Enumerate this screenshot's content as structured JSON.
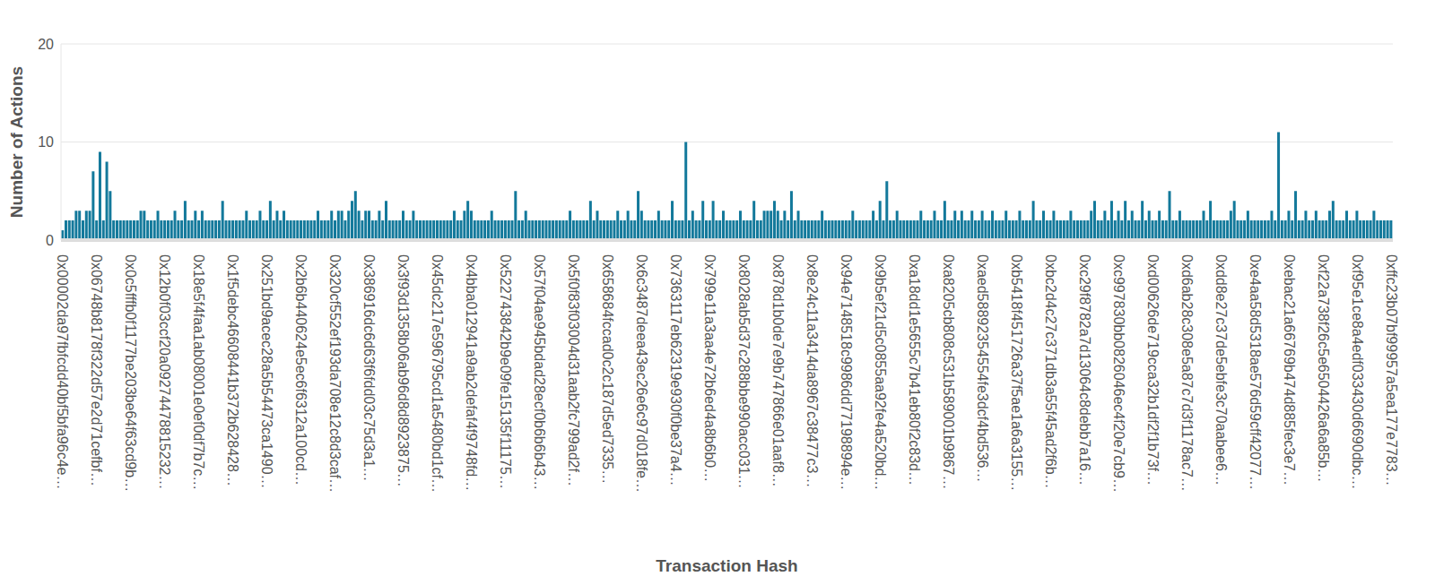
{
  "chart_data": {
    "type": "bar",
    "x_label": "Transaction Hash",
    "y_label": "Number of Actions",
    "color": "#13799b",
    "ylim": [
      0,
      20
    ],
    "yticks": [
      0,
      10,
      20
    ],
    "grid": true,
    "categories": [
      "0x00002da97fbfcdd40bf5bfa96c4e…",
      null,
      null,
      null,
      null,
      null,
      null,
      null,
      null,
      null,
      "0x06748b8178f322d57e2d71cefbf…",
      null,
      null,
      null,
      null,
      null,
      null,
      null,
      null,
      null,
      "0x0c5fffb0f1177be203be64f63cd9b…",
      null,
      null,
      null,
      null,
      null,
      null,
      null,
      null,
      null,
      "0x12b0f03ccf20a09274478815232…",
      null,
      null,
      null,
      null,
      null,
      null,
      null,
      null,
      null,
      "0x18e5f4faa1ab08001e0ef0df7b7c…",
      null,
      null,
      null,
      null,
      null,
      null,
      null,
      null,
      null,
      "0x1f5debc46608441b372b628428…",
      null,
      null,
      null,
      null,
      null,
      null,
      null,
      null,
      null,
      "0x251bd9acec28a5b54473ca1490…",
      null,
      null,
      null,
      null,
      null,
      null,
      null,
      null,
      null,
      "0x2b6b440624e5ec6f6312a100cd…",
      null,
      null,
      null,
      null,
      null,
      null,
      null,
      null,
      null,
      "0x320cf552ef193da708e12c8d3caf…",
      null,
      null,
      null,
      null,
      null,
      null,
      null,
      null,
      null,
      "0x386916dc6d63f6fdd03c75d3a1…",
      null,
      null,
      null,
      null,
      null,
      null,
      null,
      null,
      null,
      "0x3f93d1358b06ab96d8d8923875…",
      null,
      null,
      null,
      null,
      null,
      null,
      null,
      null,
      null,
      "0x45dc217e596795cd1a5480bd1cf…",
      null,
      null,
      null,
      null,
      null,
      null,
      null,
      null,
      null,
      "0x4bba012941a9ab2defaf4f9748fd…",
      null,
      null,
      null,
      null,
      null,
      null,
      null,
      null,
      null,
      "0x522743842b9e09fe15135f11175…",
      null,
      null,
      null,
      null,
      null,
      null,
      null,
      null,
      null,
      "0x57f04ae945bdad28ecf0b6b6b43…",
      null,
      null,
      null,
      null,
      null,
      null,
      null,
      null,
      null,
      "0x5f0f83f03004d31aab2fc799ad2f…",
      null,
      null,
      null,
      null,
      null,
      null,
      null,
      null,
      null,
      "0x658684fccad0c2c187d5ed7335…",
      null,
      null,
      null,
      null,
      null,
      null,
      null,
      null,
      null,
      "0x6c3487deea43ec26e6c97d018fe…",
      null,
      null,
      null,
      null,
      null,
      null,
      null,
      null,
      null,
      "0x7363117eb62319e930f0be37a4…",
      null,
      null,
      null,
      null,
      null,
      null,
      null,
      null,
      null,
      "0x799e11a3aa4e72b6ed4a8b6b0…",
      null,
      null,
      null,
      null,
      null,
      null,
      null,
      null,
      null,
      "0x8028ab5d37c288bbe990acc031…",
      null,
      null,
      null,
      null,
      null,
      null,
      null,
      null,
      null,
      "0x878d1b0de7e9b747866e01aaf8…",
      null,
      null,
      null,
      null,
      null,
      null,
      null,
      null,
      null,
      "0x8e24c11a3414da8967c38477c3…",
      null,
      null,
      null,
      null,
      null,
      null,
      null,
      null,
      null,
      "0x94e7148518c9986dd77198894e…",
      null,
      null,
      null,
      null,
      null,
      null,
      null,
      null,
      null,
      "0x9b5ef21d5c0855aa92fe4a520bd…",
      null,
      null,
      null,
      null,
      null,
      null,
      null,
      null,
      null,
      "0xa18dd1e5655c7b41eb80f2c83d…",
      null,
      null,
      null,
      null,
      null,
      null,
      null,
      null,
      null,
      "0xa8205cb808c531b589001b9867…",
      null,
      null,
      null,
      null,
      null,
      null,
      null,
      null,
      null,
      "0xaed58892354554fe3dcf4bd536…",
      null,
      null,
      null,
      null,
      null,
      null,
      null,
      null,
      null,
      "0xb5418f451726a37f5ae1a6a3155…",
      null,
      null,
      null,
      null,
      null,
      null,
      null,
      null,
      null,
      "0xbc2d4c27c371db3a55f45ad2f6b…",
      null,
      null,
      null,
      null,
      null,
      null,
      null,
      null,
      null,
      "0xc29f8782a7d13064c8debb7a16…",
      null,
      null,
      null,
      null,
      null,
      null,
      null,
      null,
      null,
      "0xc997830bb0826046ec4f20e7cb9…",
      null,
      null,
      null,
      null,
      null,
      null,
      null,
      null,
      null,
      "0xd00626de719cca32b1df2f1b73f…",
      null,
      null,
      null,
      null,
      null,
      null,
      null,
      null,
      null,
      "0xd6ab28c308e5a87c7d3f1178ac7…",
      null,
      null,
      null,
      null,
      null,
      null,
      null,
      null,
      null,
      "0xdd8e27c37de5ebfe3c70aabee6…",
      null,
      null,
      null,
      null,
      null,
      null,
      null,
      null,
      null,
      "0xe4aa58d5318ae576d59cff42077…",
      null,
      null,
      null,
      null,
      null,
      null,
      null,
      null,
      null,
      "0xebac21a66769b474d885fec3e7…",
      null,
      null,
      null,
      null,
      null,
      null,
      null,
      null,
      null,
      "0xf22a738f26c5e6504426a6a85b…",
      null,
      null,
      null,
      null,
      null,
      null,
      null,
      null,
      null,
      "0xf95e1ce8a4edf033430d6690dbc…",
      null,
      null,
      null,
      null,
      null,
      null,
      null,
      null,
      null,
      "0xffc23b07bf99957a5ea177e7783…"
    ],
    "values": [
      1,
      2,
      2,
      2,
      3,
      3,
      2,
      3,
      3,
      7,
      2,
      9,
      2,
      8,
      5,
      2,
      2,
      2,
      2,
      2,
      2,
      2,
      2,
      3,
      3,
      2,
      2,
      2,
      3,
      2,
      2,
      2,
      2,
      3,
      2,
      2,
      4,
      2,
      2,
      3,
      2,
      3,
      2,
      2,
      2,
      2,
      2,
      4,
      2,
      2,
      2,
      2,
      2,
      2,
      3,
      2,
      2,
      2,
      3,
      2,
      2,
      4,
      2,
      3,
      2,
      3,
      2,
      2,
      2,
      2,
      2,
      2,
      2,
      2,
      2,
      3,
      2,
      2,
      2,
      3,
      2,
      3,
      3,
      2,
      3,
      4,
      5,
      3,
      2,
      3,
      3,
      2,
      2,
      3,
      2,
      4,
      2,
      2,
      2,
      2,
      3,
      2,
      2,
      3,
      2,
      2,
      2,
      2,
      2,
      2,
      2,
      2,
      2,
      2,
      2,
      3,
      2,
      2,
      3,
      4,
      3,
      2,
      2,
      2,
      2,
      2,
      3,
      2,
      2,
      2,
      2,
      2,
      2,
      5,
      2,
      2,
      3,
      2,
      2,
      2,
      2,
      2,
      2,
      2,
      2,
      2,
      2,
      2,
      2,
      3,
      2,
      2,
      2,
      2,
      2,
      4,
      2,
      3,
      2,
      2,
      2,
      2,
      2,
      3,
      2,
      2,
      3,
      2,
      2,
      5,
      3,
      2,
      2,
      2,
      2,
      3,
      2,
      2,
      2,
      4,
      2,
      2,
      2,
      10,
      2,
      3,
      2,
      2,
      4,
      2,
      2,
      4,
      2,
      2,
      3,
      2,
      2,
      2,
      2,
      3,
      2,
      2,
      2,
      4,
      2,
      2,
      3,
      3,
      3,
      4,
      3,
      2,
      3,
      2,
      5,
      2,
      3,
      2,
      2,
      2,
      2,
      2,
      2,
      3,
      2,
      2,
      2,
      2,
      2,
      2,
      2,
      2,
      3,
      2,
      2,
      2,
      2,
      2,
      3,
      2,
      4,
      2,
      6,
      2,
      2,
      3,
      2,
      2,
      2,
      2,
      2,
      2,
      3,
      2,
      2,
      2,
      3,
      2,
      2,
      4,
      2,
      2,
      3,
      2,
      3,
      2,
      2,
      3,
      2,
      2,
      3,
      2,
      2,
      3,
      2,
      2,
      2,
      3,
      2,
      2,
      2,
      3,
      2,
      2,
      2,
      4,
      2,
      2,
      3,
      2,
      2,
      3,
      2,
      2,
      2,
      2,
      3,
      2,
      2,
      2,
      2,
      2,
      3,
      4,
      2,
      2,
      3,
      2,
      4,
      2,
      3,
      2,
      4,
      2,
      3,
      2,
      2,
      4,
      2,
      3,
      2,
      2,
      3,
      2,
      2,
      5,
      2,
      2,
      3,
      2,
      2,
      2,
      2,
      2,
      2,
      3,
      2,
      4,
      2,
      2,
      2,
      2,
      2,
      3,
      4,
      2,
      2,
      2,
      3,
      2,
      2,
      2,
      2,
      2,
      2,
      3,
      2,
      11,
      2,
      2,
      3,
      2,
      5,
      2,
      2,
      3,
      2,
      2,
      3,
      2,
      2,
      2,
      3,
      4,
      2,
      2,
      2,
      3,
      2,
      2,
      3,
      2,
      2,
      2,
      2,
      3,
      2,
      2,
      2,
      2,
      2
    ]
  }
}
